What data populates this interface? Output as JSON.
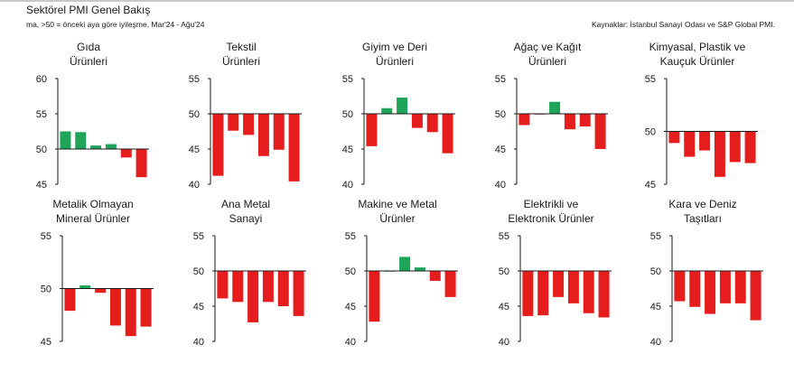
{
  "header": {
    "title": "Sektörel PMI Genel Bakış",
    "subtitle": "ma, >50 = önceki aya göre iyileşme, Mar'24 - Ağu'24",
    "source": "Kaynaklar: İstanbul Sanayi Odası ve S&P Global PMI."
  },
  "colors": {
    "positive": "#1fa55a",
    "negative": "#e51d1d",
    "axis": "#1a1a1a"
  },
  "chart_data": [
    {
      "type": "bar",
      "title": "Gıda\nÜrünleri",
      "ylim": [
        45,
        60
      ],
      "yticks": [
        45,
        50,
        55,
        60
      ],
      "baseline": 50,
      "values": [
        52.5,
        52.4,
        50.5,
        50.7,
        48.8,
        46.0
      ]
    },
    {
      "type": "bar",
      "title": "Tekstil\nÜrünleri",
      "ylim": [
        40,
        55
      ],
      "yticks": [
        40,
        45,
        50,
        55
      ],
      "baseline": 50,
      "values": [
        41.2,
        47.6,
        47.0,
        44.0,
        44.9,
        40.4
      ]
    },
    {
      "type": "bar",
      "title": "Giyim ve Deri\nÜrünleri",
      "ylim": [
        40,
        55
      ],
      "yticks": [
        40,
        45,
        50,
        55
      ],
      "baseline": 50,
      "values": [
        45.4,
        50.8,
        52.3,
        48.0,
        47.4,
        44.4
      ]
    },
    {
      "type": "bar",
      "title": "Ağaç ve Kağıt\nÜrünleri",
      "ylim": [
        40,
        55
      ],
      "yticks": [
        40,
        45,
        50,
        55
      ],
      "baseline": 50,
      "values": [
        48.4,
        49.9,
        51.7,
        47.8,
        48.2,
        45.0
      ]
    },
    {
      "type": "bar",
      "title": "Kimyasal, Plastik ve\nKauçuk Ürünler",
      "ylim": [
        45,
        55
      ],
      "yticks": [
        45,
        50,
        55
      ],
      "baseline": 50,
      "values": [
        48.9,
        47.6,
        48.2,
        45.7,
        47.1,
        47.0
      ]
    },
    {
      "type": "bar",
      "title": "Metalik Olmayan\nMineral Ürünler",
      "ylim": [
        45,
        55
      ],
      "yticks": [
        45,
        50,
        55
      ],
      "baseline": 50,
      "values": [
        47.9,
        50.3,
        49.6,
        46.5,
        45.5,
        46.4
      ]
    },
    {
      "type": "bar",
      "title": "Ana Metal\nSanayi",
      "ylim": [
        40,
        55
      ],
      "yticks": [
        40,
        45,
        50,
        55
      ],
      "baseline": 50,
      "values": [
        46.1,
        45.6,
        42.7,
        45.6,
        45.0,
        43.6
      ]
    },
    {
      "type": "bar",
      "title": "Makine ve Metal\nÜrünler",
      "ylim": [
        40,
        55
      ],
      "yticks": [
        40,
        45,
        50,
        55
      ],
      "baseline": 50,
      "values": [
        42.8,
        50.0,
        52.0,
        50.5,
        48.6,
        46.3
      ]
    },
    {
      "type": "bar",
      "title": "Elektrikli ve\nElektronik Ürünler",
      "ylim": [
        40,
        55
      ],
      "yticks": [
        40,
        45,
        50,
        55
      ],
      "baseline": 50,
      "values": [
        43.6,
        43.7,
        46.3,
        45.4,
        44.0,
        43.4
      ]
    },
    {
      "type": "bar",
      "title": "Kara ve Deniz\nTaşıtları",
      "ylim": [
        40,
        55
      ],
      "yticks": [
        40,
        45,
        50,
        55
      ],
      "baseline": 50,
      "values": [
        45.7,
        44.9,
        43.9,
        45.4,
        45.4,
        43.0
      ]
    }
  ]
}
